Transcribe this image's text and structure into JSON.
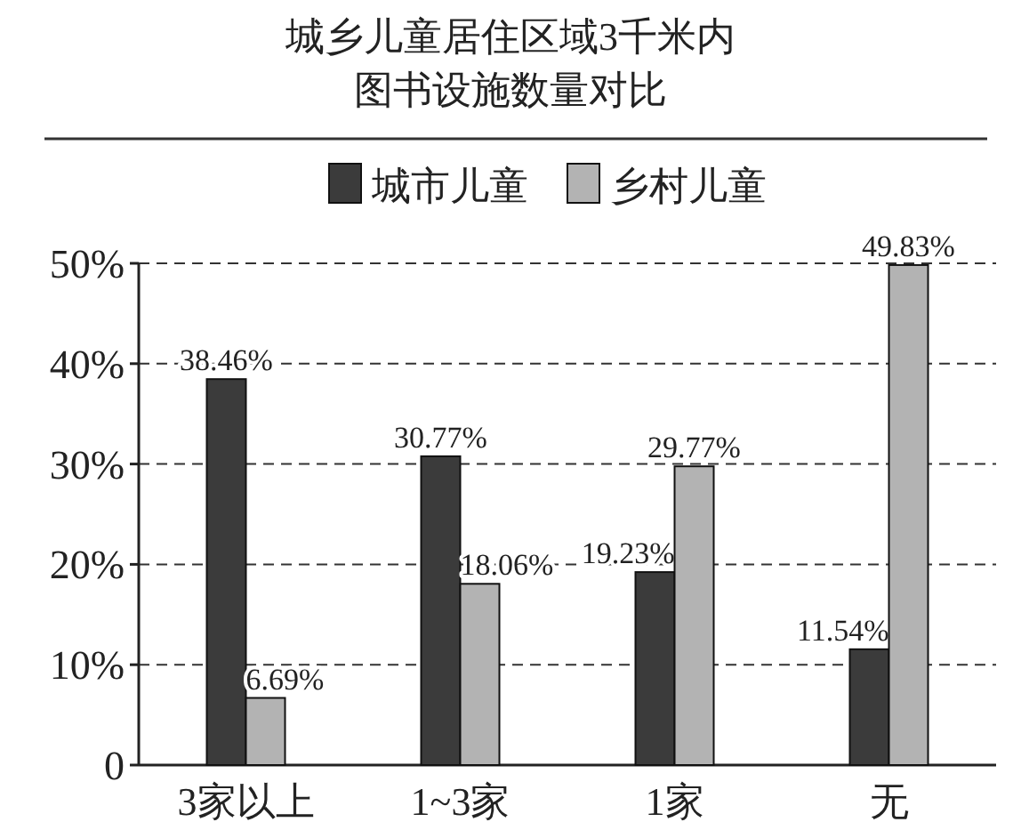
{
  "chart_data": {
    "type": "bar",
    "title": "城乡儿童居住区域3千米内",
    "subtitle": "图书设施数量对比",
    "categories": [
      "3家以上",
      "1~3家",
      "1家",
      "无"
    ],
    "series": [
      {
        "name": "城市儿童",
        "color": "#3b3b3b",
        "values": [
          38.46,
          30.77,
          19.23,
          11.54
        ],
        "value_labels": [
          "38.46%",
          "30.77%",
          "19.23%",
          "11.54%"
        ]
      },
      {
        "name": "乡村儿童",
        "color": "#b3b3b3",
        "values": [
          6.69,
          18.06,
          29.77,
          49.83
        ],
        "value_labels": [
          "6.69%",
          "18.06%",
          "29.77%",
          "49.83%"
        ]
      }
    ],
    "ylim": [
      0,
      50
    ],
    "yticks": [
      0,
      {
        "value": 10,
        "label": "10%"
      },
      {
        "value": 20,
        "label": "20%"
      },
      {
        "value": 30,
        "label": "30%"
      },
      {
        "value": 40,
        "label": "40%"
      },
      {
        "value": 50,
        "label": "50%"
      }
    ],
    "grid": "y",
    "legend": "top"
  }
}
